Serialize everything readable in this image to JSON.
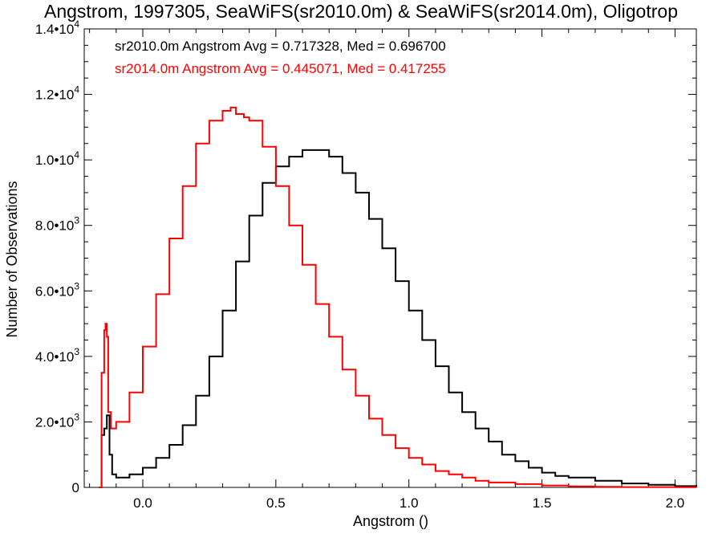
{
  "chart_data": {
    "type": "line",
    "title": "Angstrom, 1997305, SeaWiFS(sr2010.0m) & SeaWiFS(sr2014.0m), Oligotrop",
    "xlabel": "Angstrom ()",
    "ylabel": "Number of Observations",
    "xlim": [
      -0.22,
      2.08
    ],
    "ylim": [
      0,
      14000
    ],
    "x_ticks": [
      0.0,
      0.5,
      1.0,
      1.5,
      2.0
    ],
    "x_tick_labels": [
      "0.0",
      "0.5",
      "1.0",
      "1.5",
      "2.0"
    ],
    "y_ticks": [
      0,
      2000,
      4000,
      6000,
      8000,
      10000,
      12000,
      14000
    ],
    "y_tick_labels": [
      {
        "mant": "0",
        "exp": ""
      },
      {
        "mant": "2.0•10",
        "exp": "3"
      },
      {
        "mant": "4.0•10",
        "exp": "3"
      },
      {
        "mant": "6.0•10",
        "exp": "3"
      },
      {
        "mant": "8.0•10",
        "exp": "3"
      },
      {
        "mant": "1.0•10",
        "exp": "4"
      },
      {
        "mant": "1.2•10",
        "exp": "4"
      },
      {
        "mant": "1.4•10",
        "exp": "4"
      }
    ],
    "grid": false,
    "step": true,
    "series": [
      {
        "color": "#000000",
        "x": [
          -0.165,
          -0.155,
          -0.145,
          -0.135,
          -0.125,
          -0.115,
          -0.1,
          -0.05,
          0.0,
          0.05,
          0.1,
          0.15,
          0.2,
          0.25,
          0.3,
          0.35,
          0.4,
          0.45,
          0.5,
          0.55,
          0.6,
          0.65,
          0.7,
          0.75,
          0.8,
          0.85,
          0.9,
          0.95,
          1.0,
          1.05,
          1.1,
          1.15,
          1.2,
          1.25,
          1.3,
          1.35,
          1.4,
          1.45,
          1.5,
          1.55,
          1.6,
          1.7,
          1.8,
          1.9,
          2.0,
          2.08
        ],
        "y": [
          0,
          1600,
          1800,
          2200,
          1000,
          400,
          300,
          400,
          600,
          900,
          1300,
          1900,
          2800,
          4000,
          5400,
          6900,
          8300,
          9300,
          9800,
          10100,
          10300,
          10300,
          10100,
          9600,
          9000,
          8200,
          7300,
          6300,
          5400,
          4500,
          3700,
          2900,
          2300,
          1800,
          1400,
          1000,
          800,
          600,
          450,
          350,
          300,
          200,
          120,
          80,
          40,
          20
        ]
      },
      {
        "color": "#ff0000",
        "x": [
          -0.165,
          -0.155,
          -0.145,
          -0.14,
          -0.135,
          -0.13,
          -0.12,
          -0.1,
          -0.05,
          0.0,
          0.05,
          0.1,
          0.15,
          0.2,
          0.25,
          0.3,
          0.33,
          0.35,
          0.38,
          0.4,
          0.45,
          0.5,
          0.55,
          0.6,
          0.65,
          0.7,
          0.75,
          0.8,
          0.85,
          0.9,
          0.95,
          1.0,
          1.05,
          1.1,
          1.15,
          1.2,
          1.25,
          1.3,
          1.4,
          1.5,
          1.6,
          1.7,
          1.8,
          2.0,
          2.08
        ],
        "y": [
          0,
          3500,
          4800,
          5000,
          4600,
          2300,
          1800,
          2000,
          2900,
          4300,
          5900,
          7600,
          9200,
          10500,
          11200,
          11500,
          11600,
          11400,
          11300,
          11200,
          10400,
          9200,
          8000,
          6800,
          5600,
          4600,
          3600,
          2800,
          2100,
          1600,
          1200,
          900,
          700,
          500,
          400,
          300,
          200,
          150,
          100,
          60,
          30,
          20,
          10,
          5,
          0
        ]
      }
    ],
    "annotations": [
      {
        "text": "sr2010.0m Angstrom Avg = 0.717328, Med = 0.696700",
        "color": "#000000"
      },
      {
        "text": "sr2014.0m Angstrom Avg = 0.445071, Med = 0.417255",
        "color": "#ff0000"
      }
    ]
  }
}
